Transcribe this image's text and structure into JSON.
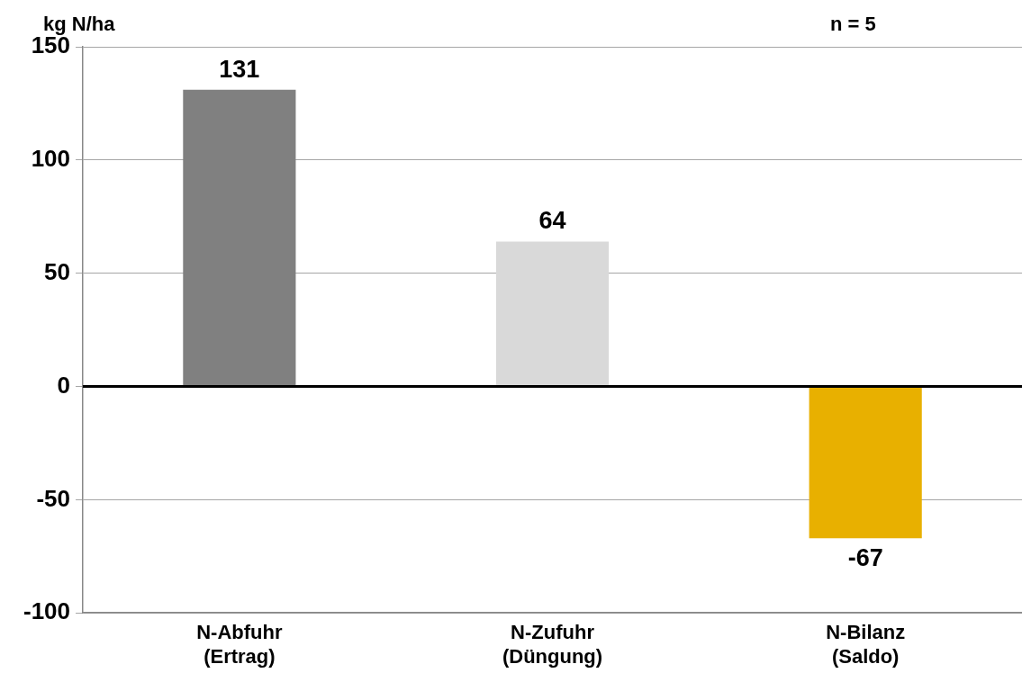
{
  "chart_data": {
    "type": "bar",
    "ylabel": "kg N/ha",
    "annotations": [
      "n = 5"
    ],
    "categories": [
      "N-Abfuhr\n(Ertrag)",
      "N-Zufuhr\n(Düngung)",
      "N-Bilanz\n(Saldo)"
    ],
    "values": [
      131,
      64,
      -67
    ],
    "colors": [
      "#808080",
      "#d9d9d9",
      "#e8b000"
    ],
    "ylim": [
      -100,
      150
    ],
    "yticks": [
      -100,
      -50,
      0,
      50,
      100,
      150
    ],
    "grid": "y",
    "legend": false,
    "data_labels": true,
    "ref_lines": [
      {
        "axis": "y",
        "value": 0,
        "color": "#000000"
      }
    ]
  }
}
